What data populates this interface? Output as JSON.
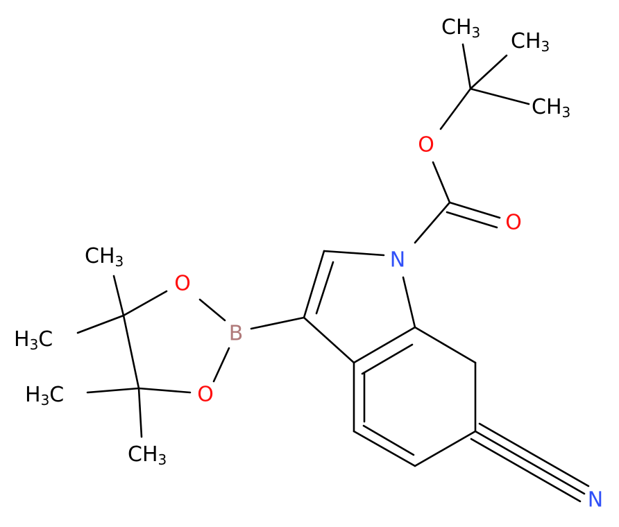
{
  "atoms": {
    "o_ether": "O",
    "o_carbonyl": "O",
    "n_indole": "N",
    "boron": "B",
    "o_boronate_top": "O",
    "o_boronate_bottom": "O",
    "n_nitrile": "N",
    "methyls": [
      [
        "CH",
        "3"
      ],
      [
        "CH",
        "3"
      ],
      [
        "CH",
        "3"
      ],
      [
        "CH",
        "3"
      ],
      [
        "H",
        "3",
        "C"
      ],
      [
        "H",
        "3",
        "C"
      ],
      [
        "CH",
        "3"
      ]
    ]
  }
}
